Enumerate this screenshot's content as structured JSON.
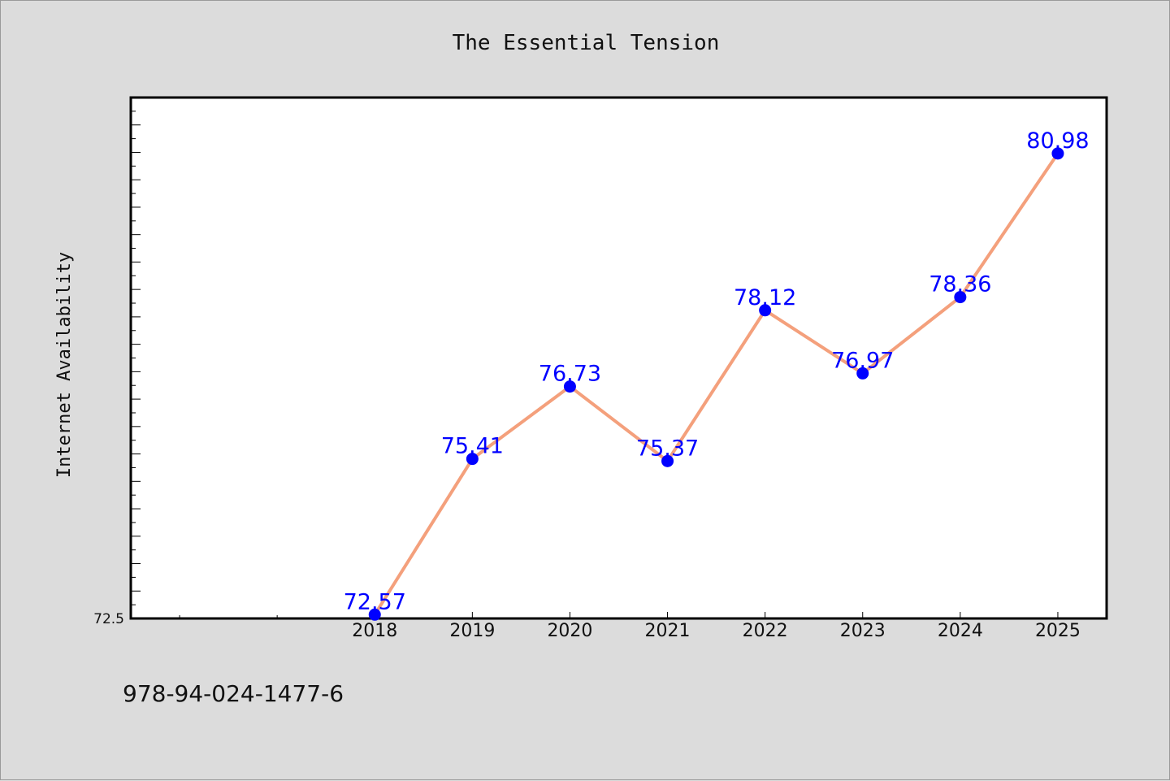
{
  "chart_data": {
    "type": "line",
    "title": "The Essential Tension",
    "xlabel": "",
    "ylabel": "Internet Availability",
    "x": [
      "2018",
      "2019",
      "2020",
      "2021",
      "2022",
      "2023",
      "2024",
      "2025"
    ],
    "series": [
      {
        "values": [
          72.57,
          75.41,
          76.73,
          75.37,
          78.12,
          76.97,
          78.36,
          80.98
        ],
        "labels": [
          "72.57",
          "75.41",
          "76.73",
          "75.37",
          "78.12",
          "76.97",
          "78.36",
          "80.98"
        ]
      }
    ],
    "ytick_label": "72.5",
    "ylim": [
      72.5,
      82.0
    ],
    "xlim": [
      2015.5,
      2025.5
    ],
    "grid": false,
    "legend": "none",
    "line_color": "#f4a07c",
    "marker_color": "#0000ff",
    "label_color": "#0000ff"
  },
  "footer": {
    "isbn": "978-94-024-1477-6"
  }
}
